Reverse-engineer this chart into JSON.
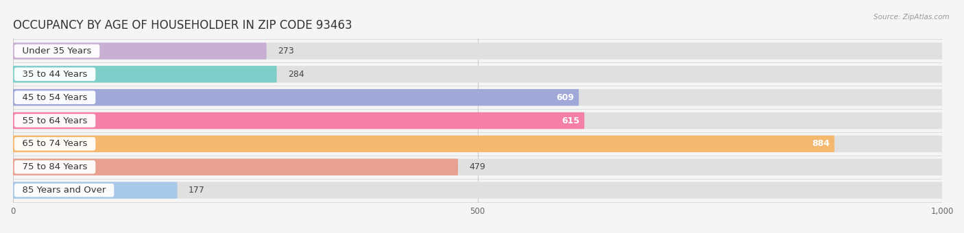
{
  "title": "OCCUPANCY BY AGE OF HOUSEHOLDER IN ZIP CODE 93463",
  "source": "Source: ZipAtlas.com",
  "categories": [
    "Under 35 Years",
    "35 to 44 Years",
    "45 to 54 Years",
    "55 to 64 Years",
    "65 to 74 Years",
    "75 to 84 Years",
    "85 Years and Over"
  ],
  "values": [
    273,
    284,
    609,
    615,
    884,
    479,
    177
  ],
  "bar_colors": [
    "#c9afd4",
    "#7ececa",
    "#a0a8d8",
    "#f480a8",
    "#f5b870",
    "#e8a090",
    "#a8c8e8"
  ],
  "xlim": [
    0,
    1000
  ],
  "xticks": [
    0,
    500,
    1000
  ],
  "background_color": "#f5f5f5",
  "bar_bg_color": "#e0e0e0",
  "title_fontsize": 12,
  "label_fontsize": 9.5,
  "value_fontsize": 9
}
